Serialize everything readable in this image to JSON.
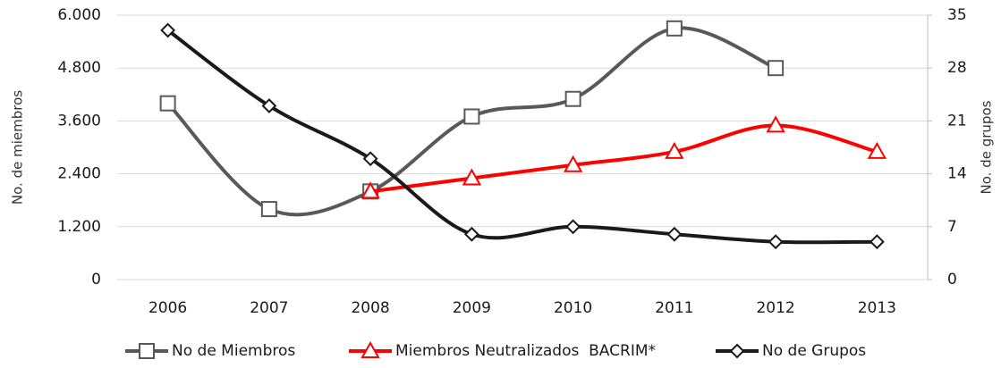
{
  "chart_data": {
    "type": "line",
    "categories": [
      "2006",
      "2007",
      "2008",
      "2009",
      "2010",
      "2011",
      "2012",
      "2013"
    ],
    "ylabel": "No. de miembros",
    "y2label": "No. de grupos",
    "ylim": [
      0,
      6000
    ],
    "yticks": [
      0,
      {
        "value": 1200,
        "label": "1.200"
      },
      {
        "value": 2400,
        "label": "2.400"
      },
      {
        "value": 3600,
        "label": "3.600"
      },
      {
        "value": 4800,
        "label": "4.800"
      },
      {
        "value": 6000,
        "label": "6.000"
      }
    ],
    "y2lim": [
      0,
      35
    ],
    "y2ticks": [
      0,
      7,
      14,
      21,
      28,
      35
    ],
    "grid": true,
    "smooth": true,
    "legend": "bottom",
    "series": [
      {
        "name": "No de Miembros",
        "color": "#595959",
        "marker": "square",
        "values": [
          4000,
          1600,
          2000,
          3700,
          4100,
          5700,
          4800,
          null
        ]
      },
      {
        "name": "Miembros Neutralizados  BACRIM*",
        "color": "#ff0000",
        "marker": "triangle",
        "values": [
          null,
          null,
          2000,
          2300,
          2600,
          2900,
          3500,
          2900
        ]
      },
      {
        "name": "No de Grupos",
        "color": "#1a1a1a",
        "marker": "diamond",
        "axis": "y2",
        "values": [
          33,
          23,
          16,
          6,
          7,
          6,
          5,
          5
        ]
      }
    ]
  }
}
